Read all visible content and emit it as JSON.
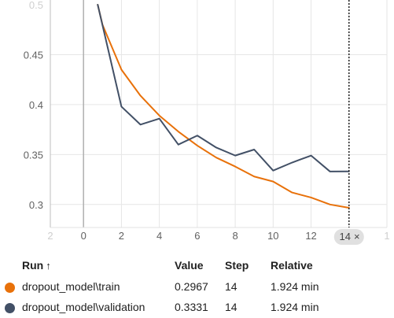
{
  "chart_data": {
    "type": "line",
    "x_ticks": [
      0,
      2,
      4,
      6,
      8,
      10,
      12
    ],
    "x_ticks_faded_left": "2",
    "x_ticks_faded_right": "1",
    "y_ticks": [
      0.3,
      0.35,
      0.4,
      0.45
    ],
    "y_tick_labels": [
      "0.3",
      "0.35",
      "0.4",
      "0.45"
    ],
    "y_top_faded_label": "0.5",
    "xlim": [
      -1.75,
      16
    ],
    "ylim": [
      0.277,
      0.5
    ],
    "hover_step": 14,
    "hover_label": "14",
    "series": [
      {
        "name": "dropout_model\\train",
        "color": "#e8710a",
        "x": [
          0.75,
          1,
          2,
          3,
          4,
          5,
          6,
          7,
          8,
          9,
          10,
          11,
          12,
          13,
          14
        ],
        "y": [
          0.5,
          0.48,
          0.435,
          0.409,
          0.389,
          0.373,
          0.359,
          0.347,
          0.338,
          0.328,
          0.323,
          0.312,
          0.307,
          0.3,
          0.2967
        ]
      },
      {
        "name": "dropout_model\\validation",
        "color": "#425066",
        "x": [
          0.75,
          2,
          3,
          4,
          5,
          6,
          7,
          8,
          9,
          10,
          11,
          12,
          13,
          14
        ],
        "y": [
          0.5,
          0.398,
          0.38,
          0.386,
          0.36,
          0.369,
          0.357,
          0.349,
          0.355,
          0.334,
          0.342,
          0.349,
          0.333,
          0.3331
        ]
      }
    ]
  },
  "table": {
    "headers": {
      "run": "Run",
      "sort_icon": "↑",
      "value": "Value",
      "step": "Step",
      "relative": "Relative"
    },
    "rows": [
      {
        "run": "dropout_model\\train",
        "value": "0.2967",
        "step": "14",
        "relative": "1.924 min",
        "color": "#e8710a"
      },
      {
        "run": "dropout_model\\validation",
        "value": "0.3331",
        "step": "14",
        "relative": "1.924 min",
        "color": "#425066"
      }
    ]
  },
  "hover_close_icon": "×"
}
